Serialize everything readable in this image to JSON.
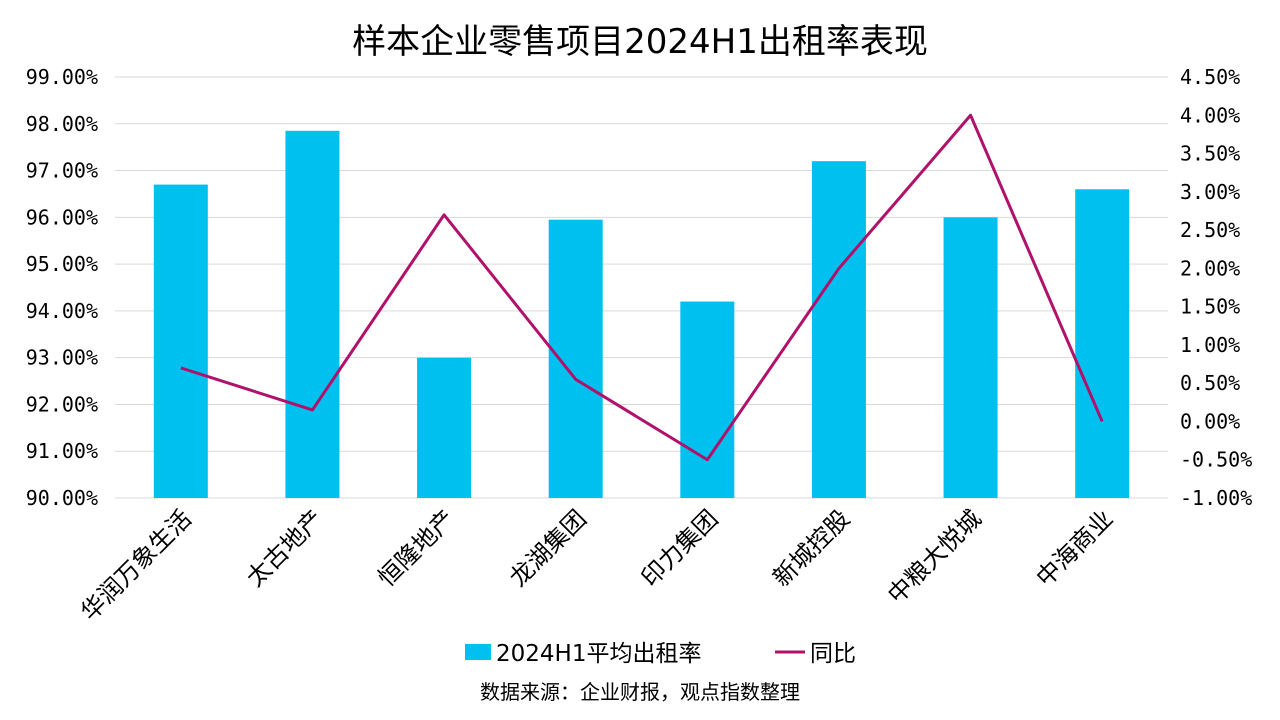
{
  "chart_data": {
    "type": "bar",
    "title": "样本企业零售项目2024H1出租率表现",
    "categories": [
      "华润万象生活",
      "太古地产",
      "恒隆地产",
      "龙湖集团",
      "印力集团",
      "新城控股",
      "中粮大悦城",
      "中海商业"
    ],
    "series": [
      {
        "name": "2024H1平均出租率",
        "type": "bar",
        "axis": "left",
        "color": "#00c0f0",
        "values": [
          96.7,
          97.85,
          93.0,
          95.95,
          94.2,
          97.2,
          96.0,
          96.6
        ]
      },
      {
        "name": "同比",
        "type": "line",
        "axis": "right",
        "color": "#b0126b",
        "values": [
          0.7,
          0.15,
          2.7,
          0.55,
          -0.5,
          2.0,
          4.0,
          0.0
        ]
      }
    ],
    "y_left": {
      "min": 90,
      "max": 99,
      "step": 1,
      "tick_labels": [
        "90.00%",
        "91.00%",
        "92.00%",
        "93.00%",
        "94.00%",
        "95.00%",
        "96.00%",
        "97.00%",
        "98.00%",
        "99.00%"
      ]
    },
    "y_right": {
      "min": -1,
      "max": 4.5,
      "step": 0.5,
      "tick_labels": [
        "-1.00%",
        "-0.50%",
        "0.00%",
        "0.50%",
        "1.00%",
        "1.50%",
        "2.00%",
        "2.50%",
        "3.00%",
        "3.50%",
        "4.00%",
        "4.50%"
      ]
    },
    "grid": true,
    "legend_position": "bottom",
    "source": "数据来源：企业财报，观点指数整理"
  }
}
